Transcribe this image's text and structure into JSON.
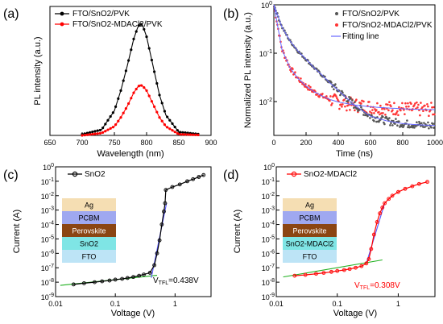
{
  "chart_data": [
    {
      "panel": "(a)",
      "type": "line",
      "xlabel": "Wavelength (nm)",
      "ylabel": "PL intensity (a.u.)",
      "xlim": [
        650,
        900
      ],
      "xticks": [
        "650",
        "700",
        "750",
        "800",
        "850",
        "900"
      ],
      "ylim": [
        0,
        1.15
      ],
      "yticks_labeled": false,
      "legend_position": "top-left",
      "series": [
        {
          "name": "FTO/SnO2/PVK",
          "color": "#000000",
          "marker": "circle",
          "x": [
            700,
            730,
            750,
            760,
            770,
            780,
            786,
            790,
            794,
            800,
            810,
            820,
            830,
            850,
            900
          ],
          "y": [
            0.01,
            0.05,
            0.22,
            0.4,
            0.62,
            0.86,
            0.96,
            1.0,
            0.98,
            0.88,
            0.62,
            0.36,
            0.18,
            0.03,
            0.0
          ]
        },
        {
          "name": "FTO/SnO2-MDACl2/PVK",
          "color": "#ff0000",
          "marker": "circle",
          "x": [
            700,
            730,
            750,
            760,
            770,
            780,
            786,
            790,
            794,
            800,
            810,
            820,
            830,
            850,
            900
          ],
          "y": [
            0.0,
            0.02,
            0.08,
            0.16,
            0.26,
            0.38,
            0.43,
            0.45,
            0.44,
            0.4,
            0.28,
            0.16,
            0.08,
            0.01,
            0.0
          ]
        }
      ]
    },
    {
      "panel": "(b)",
      "type": "scatter",
      "xlabel": "Time (ns)",
      "ylabel": "Normalized PL intensity (a.u.)",
      "xlim": [
        0,
        1000
      ],
      "xticks": [
        "0",
        "200",
        "400",
        "600",
        "800",
        "1000"
      ],
      "yscale": "log",
      "ylim": [
        0.002,
        1
      ],
      "legend_position": "top-right",
      "series": [
        {
          "name": "FTO/SnO2/PVK",
          "color": "#555555",
          "x": [
            0,
            50,
            100,
            150,
            200,
            250,
            300,
            350,
            400,
            450,
            500,
            550,
            600,
            700,
            800,
            900,
            1000
          ],
          "y": [
            1.0,
            0.35,
            0.18,
            0.11,
            0.075,
            0.05,
            0.035,
            0.024,
            0.017,
            0.012,
            0.0085,
            0.0065,
            0.005,
            0.004,
            0.0035,
            0.0033,
            0.0032
          ]
        },
        {
          "name": "FTO/SnO2-MDACl2/PVK",
          "color": "#ff3333",
          "x": [
            0,
            50,
            100,
            150,
            200,
            250,
            300,
            350,
            400,
            500,
            600,
            700,
            800,
            900,
            1000
          ],
          "y": [
            1.0,
            0.12,
            0.05,
            0.03,
            0.021,
            0.016,
            0.013,
            0.011,
            0.0098,
            0.0085,
            0.0078,
            0.0074,
            0.0071,
            0.0069,
            0.0068
          ]
        },
        {
          "name": "Fitting line",
          "color": "#6666ff",
          "line_only": true
        }
      ]
    },
    {
      "panel": "(c)",
      "type": "scatter",
      "xlabel": "Voltage (V)",
      "ylabel": "Current (A)",
      "xscale": "log",
      "xlim": [
        0.01,
        4
      ],
      "xticks": [
        "0.01",
        "0.1",
        "1"
      ],
      "yscale": "log",
      "ylim": [
        1e-09,
        1
      ],
      "yticks": [
        "10-9",
        "10-8",
        "10-7",
        "10-6",
        "10-5",
        "10-4",
        "10-3",
        "10-2",
        "10-1",
        "100"
      ],
      "legend_position": "top-left",
      "series": [
        {
          "name": "SnO2",
          "color": "#000000",
          "x": [
            0.02,
            0.03,
            0.045,
            0.06,
            0.08,
            0.1,
            0.13,
            0.16,
            0.2,
            0.25,
            0.3,
            0.38,
            0.45,
            0.5,
            0.55,
            0.6,
            0.65,
            0.68,
            0.7,
            0.9,
            1.2,
            1.6,
            2.0,
            2.5,
            3.0
          ],
          "y": [
            7e-09,
            8.5e-09,
            1e-08,
            1.15e-08,
            1.3e-08,
            1.5e-08,
            1.7e-08,
            1.95e-08,
            2.3e-08,
            2.8e-08,
            3.4e-08,
            4.5e-08,
            1.5e-07,
            1e-06,
            8e-06,
            0.0001,
            0.0008,
            0.003,
            0.025,
            0.04,
            0.06,
            0.1,
            0.14,
            0.2,
            0.27
          ]
        }
      ],
      "annotation": {
        "label_main": "V",
        "label_sub": "TFL",
        "label_value": "=0.438V",
        "color": "#000000"
      },
      "stack_layers": [
        "Ag",
        "PCBM",
        "Perovskite",
        "SnO2",
        "FTO"
      ]
    },
    {
      "panel": "(d)",
      "type": "scatter",
      "xlabel": "Voltage (V)",
      "ylabel": "Current (A)",
      "xscale": "log",
      "xlim": [
        0.01,
        4
      ],
      "xticks": [
        "0.01",
        "0.1",
        "1"
      ],
      "yscale": "log",
      "ylim": [
        1e-09,
        1
      ],
      "yticks": [
        "10-9",
        "10-8",
        "10-7",
        "10-6",
        "10-5",
        "10-4",
        "10-3",
        "10-2",
        "10-1",
        "100"
      ],
      "legend_position": "top-left",
      "series": [
        {
          "name": "SnO2-MDACl2",
          "color": "#ff0000",
          "x": [
            0.02,
            0.03,
            0.045,
            0.06,
            0.08,
            0.1,
            0.13,
            0.16,
            0.2,
            0.25,
            0.3,
            0.33,
            0.36,
            0.4,
            0.45,
            0.5,
            0.55,
            0.6,
            0.7,
            0.8,
            1.0,
            1.3,
            1.7,
            2.2,
            3.0
          ],
          "y": [
            2.8e-08,
            3.2e-08,
            3.8e-08,
            4.4e-08,
            5.2e-08,
            6e-08,
            7e-08,
            8.2e-08,
            1e-07,
            1.3e-07,
            2e-07,
            4e-07,
            2e-06,
            2e-05,
            0.00015,
            0.0006,
            0.0015,
            0.003,
            0.006,
            0.01,
            0.018,
            0.03,
            0.045,
            0.065,
            0.09
          ]
        }
      ],
      "annotation": {
        "label_main": "V",
        "label_sub": "TFL",
        "label_value": "=0.308V",
        "color": "#ff0000"
      },
      "stack_layers": [
        "Ag",
        "PCBM",
        "Perovskite",
        "SnO2-MDACl2",
        "FTO"
      ]
    }
  ],
  "colors": {
    "ag": "#f5deb3",
    "pcbm": "#9fa8f0",
    "perovskite": "#8b4513",
    "sno2": "#7fe5e5",
    "fto": "#bde4f6",
    "fit_green": "#20b020",
    "fit_blue": "#5555ff"
  }
}
